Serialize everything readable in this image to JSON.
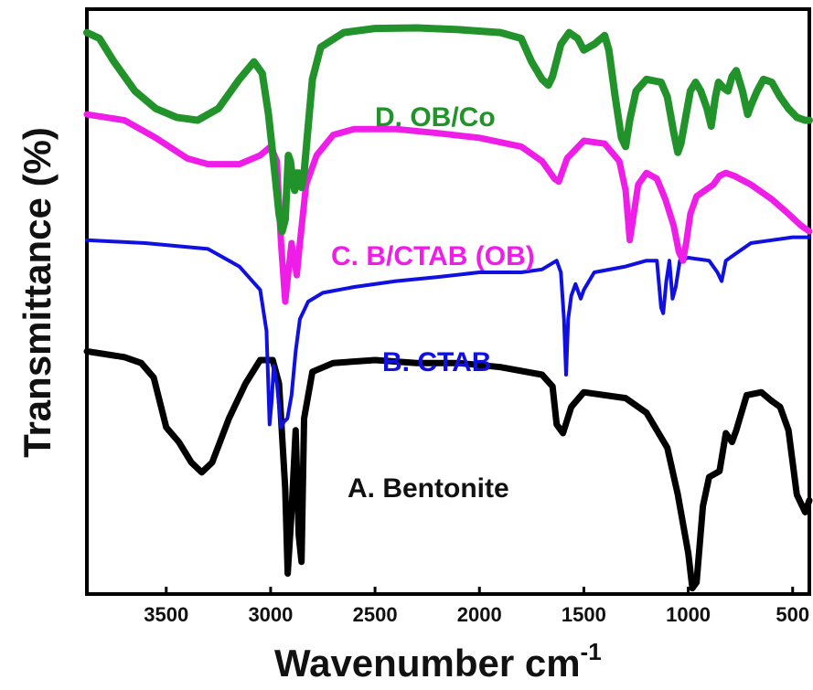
{
  "chart_data": {
    "type": "line",
    "title": "",
    "xlabel": "Wavenumber cm",
    "xlabel_superscript": "-1",
    "ylabel": "Transmittance (%)",
    "xlim": [
      3880,
      420
    ],
    "x_reversed": true,
    "x_ticks": [
      3500,
      3000,
      2500,
      2000,
      1500,
      1000,
      500
    ],
    "y_ticks_shown": false,
    "grid": false,
    "series": [
      {
        "name": "A. Bentonite",
        "color": "#000000",
        "points": [
          [
            3880,
            0.585
          ],
          [
            3700,
            0.595
          ],
          [
            3620,
            0.605
          ],
          [
            3560,
            0.63
          ],
          [
            3500,
            0.715
          ],
          [
            3440,
            0.74
          ],
          [
            3380,
            0.775
          ],
          [
            3330,
            0.792
          ],
          [
            3280,
            0.775
          ],
          [
            3200,
            0.7
          ],
          [
            3120,
            0.64
          ],
          [
            3050,
            0.6
          ],
          [
            2990,
            0.6
          ],
          [
            2960,
            0.64
          ],
          [
            2930,
            0.82
          ],
          [
            2918,
            0.965
          ],
          [
            2900,
            0.86
          ],
          [
            2880,
            0.72
          ],
          [
            2865,
            0.9
          ],
          [
            2852,
            0.945
          ],
          [
            2840,
            0.7
          ],
          [
            2800,
            0.62
          ],
          [
            2700,
            0.605
          ],
          [
            2500,
            0.6
          ],
          [
            2300,
            0.605
          ],
          [
            2100,
            0.605
          ],
          [
            1900,
            0.612
          ],
          [
            1700,
            0.625
          ],
          [
            1650,
            0.645
          ],
          [
            1630,
            0.71
          ],
          [
            1600,
            0.725
          ],
          [
            1560,
            0.68
          ],
          [
            1500,
            0.655
          ],
          [
            1300,
            0.665
          ],
          [
            1200,
            0.69
          ],
          [
            1100,
            0.75
          ],
          [
            1050,
            0.83
          ],
          [
            1000,
            0.93
          ],
          [
            980,
            0.99
          ],
          [
            960,
            0.98
          ],
          [
            930,
            0.85
          ],
          [
            900,
            0.8
          ],
          [
            850,
            0.79
          ],
          [
            820,
            0.725
          ],
          [
            790,
            0.74
          ],
          [
            770,
            0.72
          ],
          [
            720,
            0.66
          ],
          [
            650,
            0.655
          ],
          [
            600,
            0.67
          ],
          [
            560,
            0.68
          ],
          [
            520,
            0.72
          ],
          [
            480,
            0.83
          ],
          [
            440,
            0.86
          ],
          [
            420,
            0.84
          ]
        ]
      },
      {
        "name": "B. CTAB",
        "color": "#1010e0",
        "points": [
          [
            3880,
            0.395
          ],
          [
            3600,
            0.4
          ],
          [
            3300,
            0.41
          ],
          [
            3150,
            0.44
          ],
          [
            3050,
            0.48
          ],
          [
            3020,
            0.55
          ],
          [
            3005,
            0.71
          ],
          [
            2995,
            0.67
          ],
          [
            2985,
            0.61
          ],
          [
            2970,
            0.64
          ],
          [
            2950,
            0.715
          ],
          [
            2935,
            0.705
          ],
          [
            2920,
            0.7
          ],
          [
            2900,
            0.66
          ],
          [
            2880,
            0.585
          ],
          [
            2860,
            0.53
          ],
          [
            2820,
            0.5
          ],
          [
            2750,
            0.485
          ],
          [
            2600,
            0.475
          ],
          [
            2400,
            0.465
          ],
          [
            2200,
            0.458
          ],
          [
            2000,
            0.45
          ],
          [
            1800,
            0.45
          ],
          [
            1700,
            0.445
          ],
          [
            1630,
            0.43
          ],
          [
            1610,
            0.45
          ],
          [
            1595,
            0.53
          ],
          [
            1585,
            0.625
          ],
          [
            1575,
            0.53
          ],
          [
            1560,
            0.49
          ],
          [
            1540,
            0.47
          ],
          [
            1515,
            0.495
          ],
          [
            1500,
            0.48
          ],
          [
            1450,
            0.45
          ],
          [
            1300,
            0.44
          ],
          [
            1200,
            0.43
          ],
          [
            1150,
            0.43
          ],
          [
            1130,
            0.51
          ],
          [
            1120,
            0.52
          ],
          [
            1105,
            0.465
          ],
          [
            1090,
            0.43
          ],
          [
            1075,
            0.495
          ],
          [
            1060,
            0.475
          ],
          [
            1040,
            0.43
          ],
          [
            1000,
            0.425
          ],
          [
            900,
            0.43
          ],
          [
            860,
            0.45
          ],
          [
            840,
            0.465
          ],
          [
            820,
            0.43
          ],
          [
            780,
            0.42
          ],
          [
            700,
            0.4
          ],
          [
            600,
            0.395
          ],
          [
            500,
            0.39
          ],
          [
            420,
            0.39
          ]
        ]
      },
      {
        "name": "C. B/CTAB (OB)",
        "color": "#ee1ee8",
        "points": [
          [
            3880,
            0.18
          ],
          [
            3700,
            0.19
          ],
          [
            3550,
            0.22
          ],
          [
            3400,
            0.255
          ],
          [
            3300,
            0.265
          ],
          [
            3150,
            0.265
          ],
          [
            3050,
            0.25
          ],
          [
            3000,
            0.235
          ],
          [
            2970,
            0.26
          ],
          [
            2950,
            0.4
          ],
          [
            2930,
            0.5
          ],
          [
            2915,
            0.45
          ],
          [
            2900,
            0.4
          ],
          [
            2890,
            0.42
          ],
          [
            2875,
            0.455
          ],
          [
            2860,
            0.4
          ],
          [
            2830,
            0.3
          ],
          [
            2780,
            0.25
          ],
          [
            2700,
            0.215
          ],
          [
            2600,
            0.205
          ],
          [
            2400,
            0.205
          ],
          [
            2200,
            0.212
          ],
          [
            2000,
            0.22
          ],
          [
            1800,
            0.235
          ],
          [
            1700,
            0.26
          ],
          [
            1640,
            0.29
          ],
          [
            1620,
            0.295
          ],
          [
            1580,
            0.255
          ],
          [
            1500,
            0.225
          ],
          [
            1400,
            0.23
          ],
          [
            1330,
            0.26
          ],
          [
            1300,
            0.31
          ],
          [
            1280,
            0.395
          ],
          [
            1265,
            0.36
          ],
          [
            1240,
            0.3
          ],
          [
            1200,
            0.28
          ],
          [
            1150,
            0.29
          ],
          [
            1110,
            0.325
          ],
          [
            1070,
            0.37
          ],
          [
            1045,
            0.415
          ],
          [
            1025,
            0.43
          ],
          [
            1010,
            0.4
          ],
          [
            990,
            0.35
          ],
          [
            960,
            0.32
          ],
          [
            920,
            0.31
          ],
          [
            880,
            0.3
          ],
          [
            850,
            0.285
          ],
          [
            820,
            0.28
          ],
          [
            780,
            0.285
          ],
          [
            700,
            0.3
          ],
          [
            600,
            0.325
          ],
          [
            520,
            0.35
          ],
          [
            460,
            0.37
          ],
          [
            420,
            0.38
          ]
        ]
      },
      {
        "name": "D. OB/Co",
        "color": "#22922a",
        "points": [
          [
            3880,
            0.04
          ],
          [
            3820,
            0.05
          ],
          [
            3750,
            0.09
          ],
          [
            3650,
            0.14
          ],
          [
            3550,
            0.17
          ],
          [
            3450,
            0.185
          ],
          [
            3350,
            0.19
          ],
          [
            3250,
            0.17
          ],
          [
            3150,
            0.12
          ],
          [
            3080,
            0.09
          ],
          [
            3040,
            0.11
          ],
          [
            3010,
            0.18
          ],
          [
            2980,
            0.28
          ],
          [
            2960,
            0.35
          ],
          [
            2945,
            0.38
          ],
          [
            2930,
            0.36
          ],
          [
            2915,
            0.25
          ],
          [
            2905,
            0.26
          ],
          [
            2895,
            0.29
          ],
          [
            2885,
            0.31
          ],
          [
            2875,
            0.28
          ],
          [
            2865,
            0.28
          ],
          [
            2852,
            0.305
          ],
          [
            2840,
            0.28
          ],
          [
            2820,
            0.2
          ],
          [
            2800,
            0.12
          ],
          [
            2760,
            0.065
          ],
          [
            2650,
            0.04
          ],
          [
            2500,
            0.033
          ],
          [
            2300,
            0.032
          ],
          [
            2100,
            0.035
          ],
          [
            1900,
            0.04
          ],
          [
            1800,
            0.05
          ],
          [
            1750,
            0.09
          ],
          [
            1700,
            0.12
          ],
          [
            1670,
            0.13
          ],
          [
            1650,
            0.115
          ],
          [
            1610,
            0.06
          ],
          [
            1570,
            0.04
          ],
          [
            1530,
            0.05
          ],
          [
            1500,
            0.07
          ],
          [
            1450,
            0.06
          ],
          [
            1400,
            0.045
          ],
          [
            1380,
            0.07
          ],
          [
            1350,
            0.15
          ],
          [
            1320,
            0.22
          ],
          [
            1300,
            0.235
          ],
          [
            1280,
            0.19
          ],
          [
            1250,
            0.14
          ],
          [
            1200,
            0.12
          ],
          [
            1130,
            0.125
          ],
          [
            1100,
            0.15
          ],
          [
            1070,
            0.21
          ],
          [
            1050,
            0.245
          ],
          [
            1035,
            0.23
          ],
          [
            1010,
            0.18
          ],
          [
            990,
            0.14
          ],
          [
            965,
            0.125
          ],
          [
            940,
            0.14
          ],
          [
            910,
            0.17
          ],
          [
            890,
            0.2
          ],
          [
            870,
            0.15
          ],
          [
            855,
            0.125
          ],
          [
            830,
            0.135
          ],
          [
            810,
            0.14
          ],
          [
            790,
            0.115
          ],
          [
            770,
            0.105
          ],
          [
            740,
            0.14
          ],
          [
            715,
            0.18
          ],
          [
            700,
            0.165
          ],
          [
            670,
            0.14
          ],
          [
            640,
            0.12
          ],
          [
            600,
            0.125
          ],
          [
            560,
            0.15
          ],
          [
            520,
            0.17
          ],
          [
            480,
            0.185
          ],
          [
            440,
            0.19
          ],
          [
            420,
            0.19
          ]
        ]
      }
    ],
    "annotations": [
      {
        "series": 3,
        "text": "D. OB/Co",
        "color": "#22922a"
      },
      {
        "series": 2,
        "text": "C. B/CTAB (OB)",
        "color": "#ee1ee8"
      },
      {
        "series": 1,
        "text": "B. CTAB",
        "color": "#1010e0"
      },
      {
        "series": 0,
        "text": "A. Bentonite",
        "color": "#111111"
      }
    ]
  }
}
